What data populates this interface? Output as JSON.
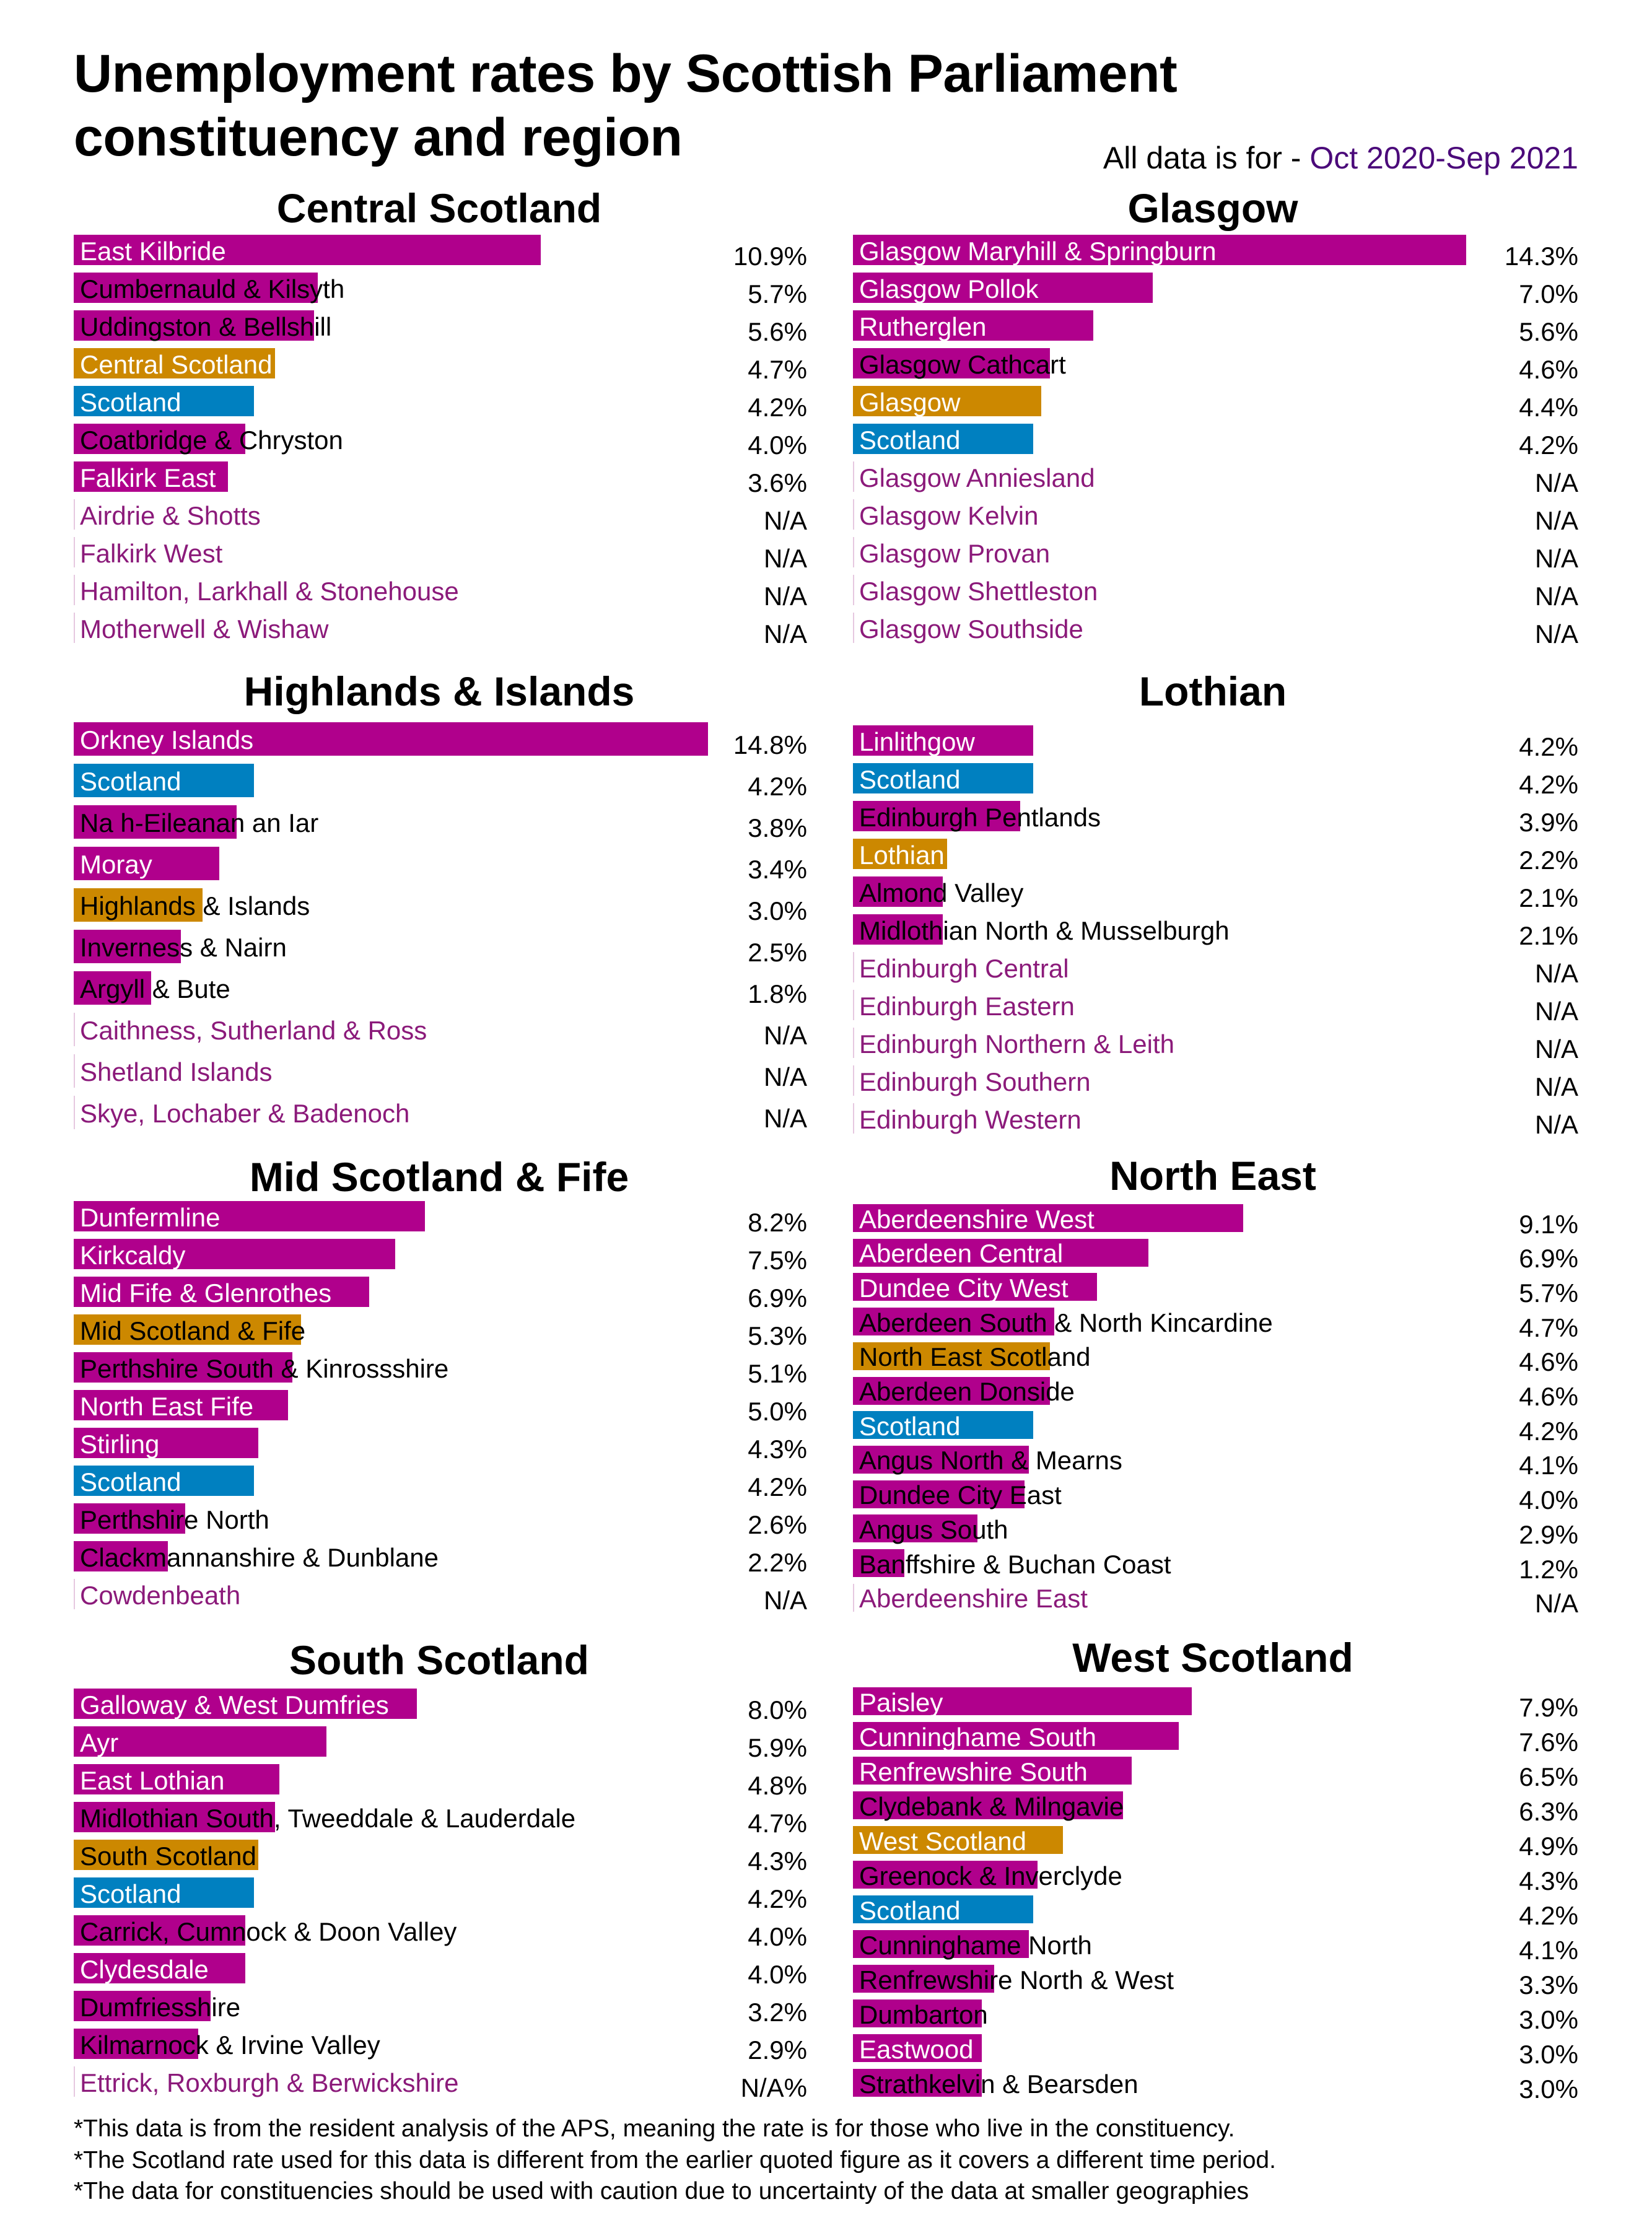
{
  "header": {
    "title_line1": "Unemployment rates by Scottish Parliament",
    "title_line2": "constituency and region",
    "subtitle_prefix": "All data is for - ",
    "subtitle_period": "Oct 2020-Sep 2021"
  },
  "colors": {
    "constituency": "#B0008C",
    "region": "#CC8800",
    "scotland": "#0080C0",
    "na_label": "#8B1A7A",
    "period": "#4B0A7A"
  },
  "chart_data": [
    {
      "type": "bar",
      "orientation": "horizontal",
      "title": "Central Scotland",
      "categories": [
        "East Kilbride",
        "Cumbernauld & Kilsyth",
        "Uddingston & Bellshill",
        "Central Scotland",
        "Scotland",
        "Coatbridge & Chryston",
        "Falkirk East",
        "Airdrie & Shotts",
        "Falkirk West",
        "Hamilton, Larkhall & Stonehouse",
        "Motherwell & Wishaw"
      ],
      "category_types": [
        "constituency",
        "constituency",
        "constituency",
        "region",
        "scotland",
        "constituency",
        "constituency",
        "na",
        "na",
        "na",
        "na"
      ],
      "values": [
        10.9,
        5.7,
        5.6,
        4.7,
        4.2,
        4.0,
        3.6,
        null,
        null,
        null,
        null
      ],
      "value_labels": [
        "10.9%",
        "5.7%",
        "5.6%",
        "4.7%",
        "4.2%",
        "4.0%",
        "3.6%",
        "N/A",
        "N/A",
        "N/A",
        "N/A"
      ]
    },
    {
      "type": "bar",
      "orientation": "horizontal",
      "title": "Glasgow",
      "categories": [
        "Glasgow Maryhill & Springburn",
        "Glasgow Pollok",
        "Rutherglen",
        "Glasgow Cathcart",
        "Glasgow",
        "Scotland",
        "Glasgow Anniesland",
        "Glasgow Kelvin",
        "Glasgow Provan",
        "Glasgow Shettleston",
        "Glasgow Southside"
      ],
      "category_types": [
        "constituency",
        "constituency",
        "constituency",
        "constituency",
        "region",
        "scotland",
        "na",
        "na",
        "na",
        "na",
        "na"
      ],
      "values": [
        14.3,
        7.0,
        5.6,
        4.6,
        4.4,
        4.2,
        null,
        null,
        null,
        null,
        null
      ],
      "value_labels": [
        "14.3%",
        "7.0%",
        "5.6%",
        "4.6%",
        "4.4%",
        "4.2%",
        "N/A",
        "N/A",
        "N/A",
        "N/A",
        "N/A"
      ]
    },
    {
      "type": "bar",
      "orientation": "horizontal",
      "title": "Highlands & Islands",
      "categories": [
        "Orkney Islands",
        "Scotland",
        "Na h-Eileanan an Iar",
        "Moray",
        "Highlands & Islands",
        "Inverness & Nairn",
        "Argyll & Bute",
        "Caithness, Sutherland & Ross",
        "Shetland Islands",
        "Skye, Lochaber & Badenoch"
      ],
      "category_types": [
        "constituency",
        "scotland",
        "constituency",
        "constituency",
        "region",
        "constituency",
        "constituency",
        "na",
        "na",
        "na"
      ],
      "values": [
        14.8,
        4.2,
        3.8,
        3.4,
        3.0,
        2.5,
        1.8,
        null,
        null,
        null
      ],
      "value_labels": [
        "14.8%",
        "4.2%",
        "3.8%",
        "3.4%",
        "3.0%",
        "2.5%",
        "1.8%",
        "N/A",
        "N/A",
        "N/A"
      ]
    },
    {
      "type": "bar",
      "orientation": "horizontal",
      "title": "Lothian",
      "categories": [
        "Linlithgow",
        "Scotland",
        "Edinburgh Pentlands",
        "Lothian",
        "Almond Valley",
        "Midlothian North & Musselburgh",
        "Edinburgh Central",
        "Edinburgh Eastern",
        "Edinburgh Northern & Leith",
        "Edinburgh Southern",
        "Edinburgh Western"
      ],
      "category_types": [
        "constituency",
        "scotland",
        "constituency",
        "region",
        "constituency",
        "constituency",
        "na",
        "na",
        "na",
        "na",
        "na"
      ],
      "values": [
        4.2,
        4.2,
        3.9,
        2.2,
        2.1,
        2.1,
        null,
        null,
        null,
        null,
        null
      ],
      "value_labels": [
        "4.2%",
        "4.2%",
        "3.9%",
        "2.2%",
        "2.1%",
        "2.1%",
        "N/A",
        "N/A",
        "N/A",
        "N/A",
        "N/A"
      ]
    },
    {
      "type": "bar",
      "orientation": "horizontal",
      "title": "Mid Scotland & Fife",
      "categories": [
        "Dunfermline",
        "Kirkcaldy",
        "Mid Fife & Glenrothes",
        "Mid Scotland & Fife",
        "Perthshire South & Kinrossshire",
        "North East Fife",
        "Stirling",
        "Scotland",
        "Perthshire North",
        "Clackmannanshire & Dunblane",
        "Cowdenbeath"
      ],
      "category_types": [
        "constituency",
        "constituency",
        "constituency",
        "region",
        "constituency",
        "constituency",
        "constituency",
        "scotland",
        "constituency",
        "constituency",
        "na"
      ],
      "values": [
        8.2,
        7.5,
        6.9,
        5.3,
        5.1,
        5.0,
        4.3,
        4.2,
        2.6,
        2.2,
        null
      ],
      "value_labels": [
        "8.2%",
        "7.5%",
        "6.9%",
        "5.3%",
        "5.1%",
        "5.0%",
        "4.3%",
        "4.2%",
        "2.6%",
        "2.2%",
        "N/A"
      ]
    },
    {
      "type": "bar",
      "orientation": "horizontal",
      "title": "North East",
      "categories": [
        "Aberdeenshire West",
        "Aberdeen Central",
        "Dundee City West",
        "Aberdeen South & North Kincardine",
        "North East Scotland",
        "Aberdeen Donside",
        "Scotland",
        "Angus North & Mearns",
        "Dundee City East",
        "Angus South",
        "Banffshire & Buchan Coast",
        "Aberdeenshire East"
      ],
      "category_types": [
        "constituency",
        "constituency",
        "constituency",
        "constituency",
        "region",
        "constituency",
        "scotland",
        "constituency",
        "constituency",
        "constituency",
        "constituency",
        "na"
      ],
      "values": [
        9.1,
        6.9,
        5.7,
        4.7,
        4.6,
        4.6,
        4.2,
        4.1,
        4.0,
        2.9,
        1.2,
        null
      ],
      "value_labels": [
        "9.1%",
        "6.9%",
        "5.7%",
        "4.7%",
        "4.6%",
        "4.6%",
        "4.2%",
        "4.1%",
        "4.0%",
        "2.9%",
        "1.2%",
        "N/A"
      ]
    },
    {
      "type": "bar",
      "orientation": "horizontal",
      "title": "South Scotland",
      "categories": [
        "Galloway & West Dumfries",
        "Ayr",
        "East Lothian",
        "Midlothian South, Tweeddale & Lauderdale",
        "South Scotland",
        "Scotland",
        "Carrick, Cumnock & Doon Valley",
        "Clydesdale",
        "Dumfriesshire",
        "Kilmarnock & Irvine Valley",
        "Ettrick, Roxburgh & Berwickshire"
      ],
      "category_types": [
        "constituency",
        "constituency",
        "constituency",
        "constituency",
        "region",
        "scotland",
        "constituency",
        "constituency",
        "constituency",
        "constituency",
        "na"
      ],
      "values": [
        8.0,
        5.9,
        4.8,
        4.7,
        4.3,
        4.2,
        4.0,
        4.0,
        3.2,
        2.9,
        null
      ],
      "value_labels": [
        "8.0%",
        "5.9%",
        "4.8%",
        "4.7%",
        "4.3%",
        "4.2%",
        "4.0%",
        "4.0%",
        "3.2%",
        "2.9%",
        "N/A%"
      ]
    },
    {
      "type": "bar",
      "orientation": "horizontal",
      "title": "West Scotland",
      "categories": [
        "Paisley",
        "Cunninghame South",
        "Renfrewshire South",
        "Clydebank & Milngavie",
        "West Scotland",
        "Greenock & Inverclyde",
        "Scotland",
        "Cunninghame North",
        "Renfrewshire North & West",
        "Dumbarton",
        "Eastwood",
        "Strathkelvin & Bearsden"
      ],
      "category_types": [
        "constituency",
        "constituency",
        "constituency",
        "constituency",
        "region",
        "constituency",
        "scotland",
        "constituency",
        "constituency",
        "constituency",
        "constituency",
        "constituency"
      ],
      "values": [
        7.9,
        7.6,
        6.5,
        6.3,
        4.9,
        4.3,
        4.2,
        4.1,
        3.3,
        3.0,
        3.0,
        3.0
      ],
      "value_labels": [
        "7.9%",
        "7.6%",
        "6.5%",
        "6.3%",
        "4.9%",
        "4.3%",
        "4.2%",
        "4.1%",
        "3.3%",
        "3.0%",
        "3.0%",
        "3.0%"
      ]
    }
  ],
  "footnotes": [
    "*This data is from the resident analysis of the APS, meaning the rate is for those who live in the constituency.",
    "*The Scotland rate used for this data is different from the earlier quoted figure as it covers a different time period.",
    "*The data for constituencies should be used with caution due to uncertainty of the data at smaller geographies"
  ]
}
